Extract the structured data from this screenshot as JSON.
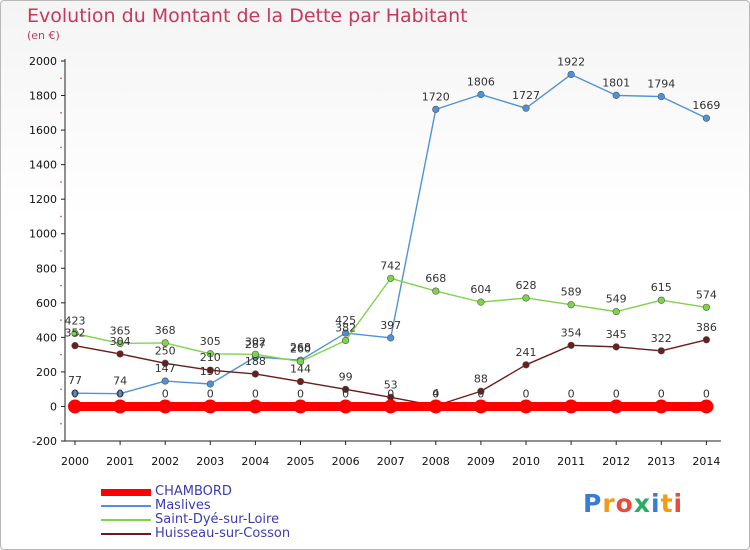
{
  "title": "Evolution du Montant de la Dette par Habitant",
  "subtitle": "(en €)",
  "logo": {
    "text": "Proxiti",
    "letters": [
      "P",
      "r",
      "o",
      "x",
      "i",
      "t",
      "i"
    ],
    "colors": [
      "#3a7bd5",
      "#f39c12",
      "#e74c3c",
      "#27ae60",
      "#3a7bd5",
      "#f39c12",
      "#e74c3c"
    ]
  },
  "chart_data": {
    "type": "line",
    "title": "Evolution du Montant de la Dette par Habitant",
    "subtitle": "(en €)",
    "xlabel": "",
    "ylabel": "",
    "x": [
      "2000",
      "2001",
      "2002",
      "2003",
      "2004",
      "2005",
      "2006",
      "2007",
      "2008",
      "2009",
      "2010",
      "2011",
      "2012",
      "2013",
      "2014"
    ],
    "ylim": [
      -200,
      2000
    ],
    "yticks": [
      "-200",
      "0",
      "200",
      "400",
      "600",
      "800",
      "1000",
      "1200",
      "1400",
      "1600",
      "1800",
      "2000"
    ],
    "grid": false,
    "legend_position": "bottom-left",
    "series": [
      {
        "name": "CHAMBORD",
        "color": "#ff0000",
        "values": [
          0,
          0,
          0,
          0,
          0,
          0,
          0,
          0,
          0,
          0,
          0,
          0,
          0,
          0,
          0
        ],
        "labels": [
          "0",
          "0",
          "0",
          "0",
          "0",
          "0",
          "0",
          "0",
          "0",
          "0",
          "0",
          "0",
          "0",
          "0",
          "0"
        ]
      },
      {
        "name": "Maslives",
        "color": "#4f93d6",
        "values": [
          77,
          74,
          147,
          130,
          287,
          268,
          425,
          397,
          1720,
          1806,
          1727,
          1922,
          1801,
          1794,
          1669
        ],
        "labels": [
          "77",
          "74",
          "147",
          "130",
          "287",
          "268",
          "425",
          "397",
          "1720",
          "1806",
          "1727",
          "1922",
          "1801",
          "1794",
          "1669"
        ]
      },
      {
        "name": "Saint-Dyé-sur-Loire",
        "color": "#7fd44a",
        "values": [
          423,
          365,
          368,
          305,
          302,
          260,
          382,
          742,
          668,
          604,
          628,
          589,
          549,
          615,
          574
        ],
        "labels": [
          "423",
          "365",
          "368",
          "305",
          "302",
          "260",
          "382",
          "742",
          "668",
          "604",
          "628",
          "589",
          "549",
          "615",
          "574"
        ]
      },
      {
        "name": "Huisseau-sur-Cosson",
        "color": "#6b1c1c",
        "values": [
          352,
          304,
          250,
          210,
          188,
          144,
          99,
          53,
          4,
          88,
          241,
          354,
          345,
          322,
          386
        ],
        "labels": [
          "352",
          "304",
          "250",
          "210",
          "188",
          "144",
          "99",
          "53",
          "4",
          "88",
          "241",
          "354",
          "345",
          "322",
          "386"
        ]
      }
    ]
  }
}
